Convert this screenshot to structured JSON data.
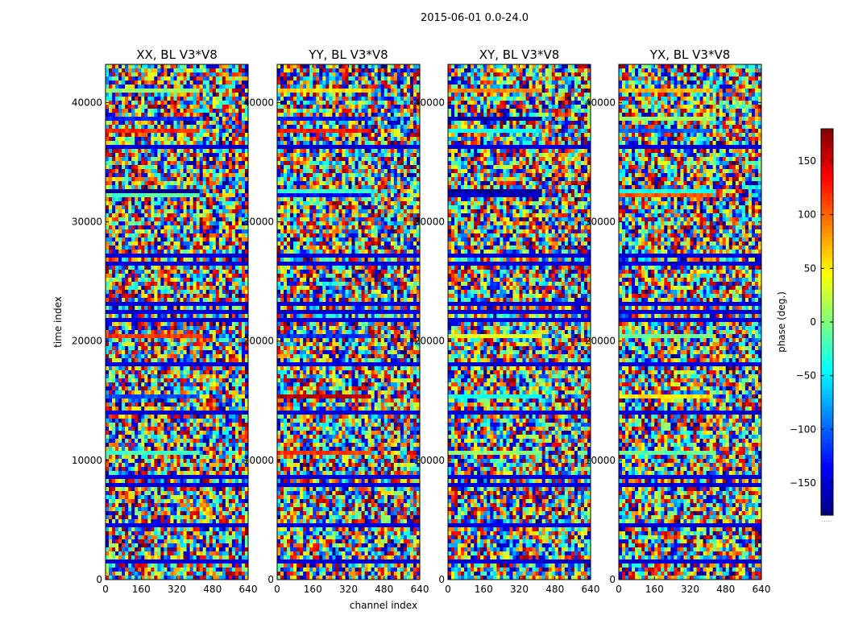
{
  "chart_data": {
    "type": "heatmap",
    "title": "2015-06-01 0.0-24.0",
    "xlabel": "channel index",
    "ylabel": "time index",
    "xlim": [
      0,
      640
    ],
    "ylim": [
      0,
      43200
    ],
    "x_ticks": [
      "0",
      "160",
      "320",
      "480",
      "640"
    ],
    "y_ticks": [
      "0",
      "10000",
      "20000",
      "30000",
      "40000"
    ],
    "panels": [
      {
        "title": "XX, BL V3*V8"
      },
      {
        "title": "YY, BL V3*V8"
      },
      {
        "title": "XY, BL V3*V8"
      },
      {
        "title": "YX, BL V3*V8"
      }
    ],
    "colorbar": {
      "label": "phase (deg.)",
      "range": [
        -180,
        180
      ],
      "ticks": [
        "150",
        "100",
        "50",
        "0",
        "−50",
        "−100",
        "−150"
      ],
      "tick_values": [
        150,
        100,
        50,
        0,
        -50,
        -100,
        -150
      ],
      "colormap": "jet",
      "extra_label": "....."
    }
  }
}
